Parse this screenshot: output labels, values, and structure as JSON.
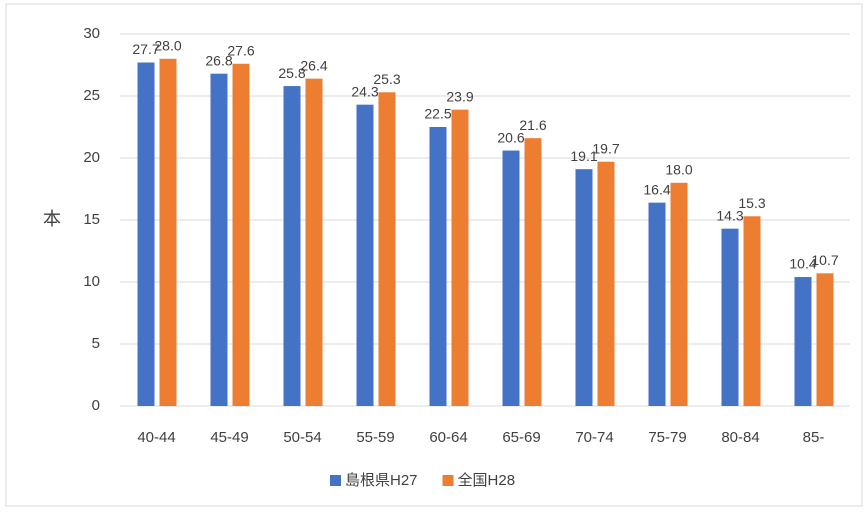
{
  "chart_data": {
    "type": "bar",
    "y_label": "本",
    "categories": [
      "40-44",
      "45-49",
      "50-54",
      "55-59",
      "60-64",
      "65-69",
      "70-74",
      "75-79",
      "80-84",
      "85-"
    ],
    "series": [
      {
        "name": "島根県H27",
        "color": "#4472c4",
        "values": [
          27.7,
          26.8,
          25.8,
          24.3,
          22.5,
          20.6,
          19.1,
          16.4,
          14.3,
          10.4
        ],
        "value_labels": [
          "27.7",
          "26.8",
          "25.8",
          "24.3",
          "22.5",
          "20.6",
          "19.1",
          "16.4",
          "14.3",
          "10.4"
        ]
      },
      {
        "name": "全国H28",
        "color": "#ed7d31",
        "values": [
          28.0,
          27.6,
          26.4,
          25.3,
          23.9,
          21.6,
          19.7,
          18.0,
          15.3,
          10.7
        ],
        "value_labels": [
          "28.0",
          "27.6",
          "26.4",
          "25.3",
          "23.9",
          "21.6",
          "19.7",
          "18.0",
          "15.3",
          "10.7"
        ]
      }
    ],
    "ylim": [
      0,
      30
    ],
    "yticks": [
      0,
      5,
      10,
      15,
      20,
      25,
      30
    ],
    "grid": true,
    "legend": "bottom"
  }
}
